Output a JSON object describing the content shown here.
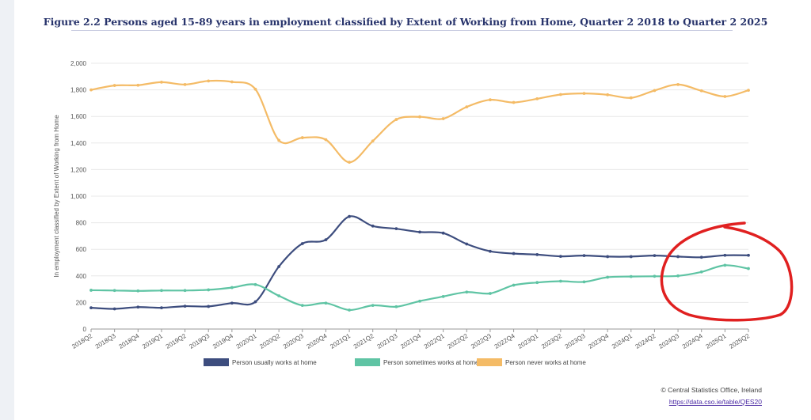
{
  "header": {
    "title": "Figure 2.2 Persons aged 15-89 years in employment classified by Extent of Working from Home, Quarter 2 2018 to Quarter 2 2025"
  },
  "footer": {
    "copyright": "© Central Statistics Office, Ireland",
    "link_text": "https://data.cso.ie/table/QES20"
  },
  "chart_data": {
    "type": "line",
    "title": "Figure 2.2 Persons aged 15-89 years in employment classified by Extent of Working from Home, Quarter 2 2018 to Quarter 2 2025",
    "xlabel": "",
    "ylabel": "In employment classified by Extent of Working from Home",
    "ylim": [
      0,
      2000
    ],
    "yticks": [
      "0",
      "200",
      "400",
      "600",
      "800",
      "1,000",
      "1,200",
      "1,400",
      "1,600",
      "1,800",
      "2,000"
    ],
    "ytick_values": [
      0,
      200,
      400,
      600,
      800,
      1000,
      1200,
      1400,
      1600,
      1800,
      2000
    ],
    "grid": true,
    "legend_position": "bottom",
    "categories": [
      "2018Q2",
      "2018Q3",
      "2018Q4",
      "2019Q1",
      "2019Q2",
      "2019Q3",
      "2019Q4",
      "2020Q1",
      "2020Q2",
      "2020Q3",
      "2020Q4",
      "2021Q1",
      "2021Q2",
      "2021Q3",
      "2021Q4",
      "2022Q1",
      "2022Q2",
      "2022Q3",
      "2022Q4",
      "2023Q1",
      "2023Q2",
      "2023Q3",
      "2023Q4",
      "2024Q1",
      "2024Q2",
      "2024Q3",
      "2024Q4",
      "2025Q1",
      "2025Q2"
    ],
    "series": [
      {
        "name": "Person usually works at home",
        "color": "#3d4d7e",
        "values": [
          160,
          152,
          165,
          160,
          172,
          170,
          195,
          205,
          470,
          643,
          672,
          847,
          775,
          755,
          730,
          722,
          640,
          585,
          568,
          560,
          547,
          553,
          545,
          545,
          553,
          545,
          540,
          555,
          555
        ]
      },
      {
        "name": "Person sometimes works at home",
        "color": "#5fc4a4",
        "values": [
          292,
          290,
          287,
          290,
          290,
          295,
          312,
          335,
          250,
          178,
          195,
          143,
          178,
          168,
          210,
          245,
          278,
          268,
          330,
          350,
          360,
          355,
          390,
          395,
          397,
          400,
          430,
          480,
          455
        ]
      },
      {
        "name": "Person never works at home",
        "color": "#f4bb66",
        "values": [
          1800,
          1833,
          1835,
          1858,
          1840,
          1867,
          1860,
          1805,
          1420,
          1440,
          1425,
          1255,
          1415,
          1577,
          1597,
          1583,
          1672,
          1725,
          1705,
          1733,
          1765,
          1773,
          1763,
          1740,
          1795,
          1840,
          1793,
          1750,
          1797
        ]
      }
    ],
    "annotations": [
      {
        "type": "freehand-circle",
        "color": "#e02020",
        "label": ""
      }
    ]
  }
}
